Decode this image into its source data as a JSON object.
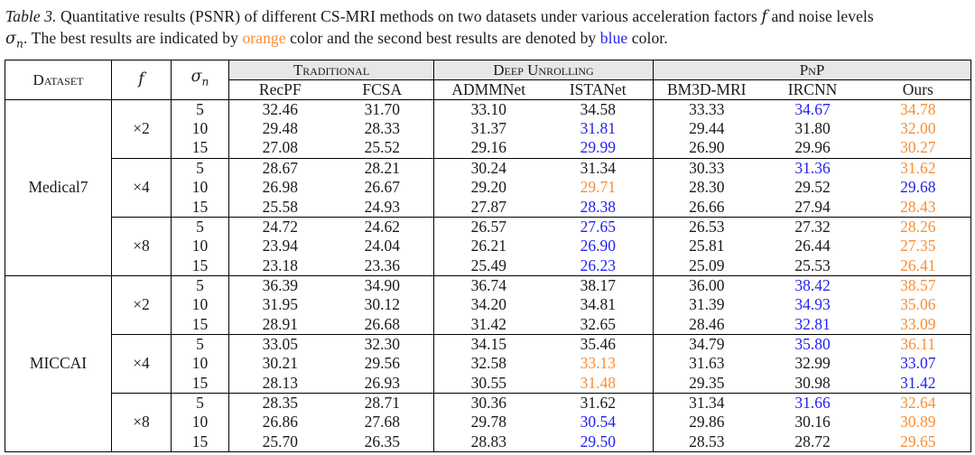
{
  "colors": {
    "best": "#F98E33",
    "second": "#2323EE",
    "header_bg": "#E7E7E7"
  },
  "caption": {
    "label": "Table 3.",
    "line1_pre": "Quantitative results (PSNR) of different CS-MRI methods on two datasets under various acceleration factors",
    "f_symbol": "f",
    "line1_post": "and noise levels",
    "sigma_symbol": "σ",
    "sigma_sub": "n",
    "line2_a": ". The best results are indicated by",
    "orange_word": "orange",
    "line2_b": "color and the second best results are denoted by",
    "blue_word": "blue",
    "line2_c": "color."
  },
  "header": {
    "dataset": "Dataset",
    "f": "f",
    "sigma": "σ",
    "sigma_sub": "n",
    "groups": [
      {
        "label": "Traditional",
        "span": 2
      },
      {
        "label": "Deep Unrolling",
        "span": 2
      },
      {
        "label": "PnP",
        "span": 3
      }
    ],
    "methods": [
      "RecPF",
      "FCSA",
      "ADMMNet",
      "ISTANet",
      "BM3D-MRI",
      "IRCNN",
      "Ours"
    ]
  },
  "body": {
    "rows": [
      {
        "dataset": "Medical7",
        "f": "×2",
        "sigma": "5",
        "values": [
          "32.46",
          "31.70",
          "33.10",
          "34.58",
          "33.33",
          "34.67",
          "34.78"
        ],
        "colors": [
          "",
          "",
          "",
          "",
          "",
          "second",
          "best"
        ]
      },
      {
        "sigma": "10",
        "values": [
          "29.48",
          "28.33",
          "31.37",
          "31.81",
          "29.44",
          "31.80",
          "32.00"
        ],
        "colors": [
          "",
          "",
          "",
          "second",
          "",
          "",
          "best"
        ]
      },
      {
        "sigma": "15",
        "values": [
          "27.08",
          "25.52",
          "29.16",
          "29.99",
          "26.90",
          "29.96",
          "30.27"
        ],
        "colors": [
          "",
          "",
          "",
          "second",
          "",
          "",
          "best"
        ]
      },
      {
        "f": "×4",
        "sigma": "5",
        "values": [
          "28.67",
          "28.21",
          "30.24",
          "31.34",
          "30.33",
          "31.36",
          "31.62"
        ],
        "colors": [
          "",
          "",
          "",
          "",
          "",
          "second",
          "best"
        ]
      },
      {
        "sigma": "10",
        "values": [
          "26.98",
          "26.67",
          "29.20",
          "29.71",
          "28.30",
          "29.52",
          "29.68"
        ],
        "colors": [
          "",
          "",
          "",
          "best",
          "",
          "",
          "second"
        ]
      },
      {
        "sigma": "15",
        "values": [
          "25.58",
          "24.93",
          "27.87",
          "28.38",
          "26.66",
          "27.94",
          "28.43"
        ],
        "colors": [
          "",
          "",
          "",
          "second",
          "",
          "",
          "best"
        ]
      },
      {
        "f": "×8",
        "sigma": "5",
        "values": [
          "24.72",
          "24.62",
          "26.57",
          "27.65",
          "26.53",
          "27.32",
          "28.26"
        ],
        "colors": [
          "",
          "",
          "",
          "second",
          "",
          "",
          "best"
        ]
      },
      {
        "sigma": "10",
        "values": [
          "23.94",
          "24.04",
          "26.21",
          "26.90",
          "25.81",
          "26.44",
          "27.35"
        ],
        "colors": [
          "",
          "",
          "",
          "second",
          "",
          "",
          "best"
        ]
      },
      {
        "sigma": "15",
        "values": [
          "23.18",
          "23.36",
          "25.49",
          "26.23",
          "25.09",
          "25.53",
          "26.41"
        ],
        "colors": [
          "",
          "",
          "",
          "second",
          "",
          "",
          "best"
        ]
      },
      {
        "dataset": "MICCAI",
        "f": "×2",
        "sigma": "5",
        "values": [
          "36.39",
          "34.90",
          "36.74",
          "38.17",
          "36.00",
          "38.42",
          "38.57"
        ],
        "colors": [
          "",
          "",
          "",
          "",
          "",
          "second",
          "best"
        ]
      },
      {
        "sigma": "10",
        "values": [
          "31.95",
          "30.12",
          "34.20",
          "34.81",
          "31.39",
          "34.93",
          "35.06"
        ],
        "colors": [
          "",
          "",
          "",
          "",
          "",
          "second",
          "best"
        ]
      },
      {
        "sigma": "15",
        "values": [
          "28.91",
          "26.68",
          "31.42",
          "32.65",
          "28.46",
          "32.81",
          "33.09"
        ],
        "colors": [
          "",
          "",
          "",
          "",
          "",
          "second",
          "best"
        ]
      },
      {
        "f": "×4",
        "sigma": "5",
        "values": [
          "33.05",
          "32.30",
          "34.15",
          "35.46",
          "34.79",
          "35.80",
          "36.11"
        ],
        "colors": [
          "",
          "",
          "",
          "",
          "",
          "second",
          "best"
        ]
      },
      {
        "sigma": "10",
        "values": [
          "30.21",
          "29.56",
          "32.58",
          "33.13",
          "31.63",
          "32.99",
          "33.07"
        ],
        "colors": [
          "",
          "",
          "",
          "best",
          "",
          "",
          "second"
        ]
      },
      {
        "sigma": "15",
        "values": [
          "28.13",
          "26.93",
          "30.55",
          "31.48",
          "29.35",
          "30.98",
          "31.42"
        ],
        "colors": [
          "",
          "",
          "",
          "best",
          "",
          "",
          "second"
        ]
      },
      {
        "f": "×8",
        "sigma": "5",
        "values": [
          "28.35",
          "28.71",
          "30.36",
          "31.62",
          "31.34",
          "31.66",
          "32.64"
        ],
        "colors": [
          "",
          "",
          "",
          "",
          "",
          "second",
          "best"
        ]
      },
      {
        "sigma": "10",
        "values": [
          "26.86",
          "27.68",
          "29.78",
          "30.54",
          "29.86",
          "30.16",
          "30.89"
        ],
        "colors": [
          "",
          "",
          "",
          "second",
          "",
          "",
          "best"
        ]
      },
      {
        "sigma": "15",
        "values": [
          "25.70",
          "26.35",
          "28.83",
          "29.50",
          "28.53",
          "28.72",
          "29.65"
        ],
        "colors": [
          "",
          "",
          "",
          "second",
          "",
          "",
          "best"
        ]
      }
    ]
  }
}
